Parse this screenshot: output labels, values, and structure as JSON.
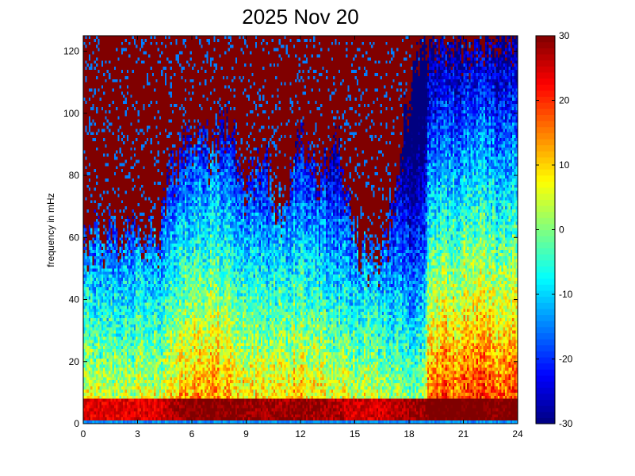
{
  "chart_data": {
    "type": "heatmap",
    "title": "2025 Nov 20",
    "xlabel": "",
    "ylabel": "frequency in mHz",
    "xlim": [
      0,
      24
    ],
    "ylim": [
      0,
      125
    ],
    "x_ticks": [
      0,
      3,
      6,
      9,
      12,
      15,
      18,
      21,
      24
    ],
    "y_ticks": [
      0,
      20,
      40,
      60,
      80,
      100,
      120
    ],
    "colorbar": {
      "range": [
        -30,
        30
      ],
      "ticks": [
        30,
        20,
        10,
        0,
        -10,
        -20,
        -30
      ],
      "colormap": "jet"
    },
    "grid": false,
    "x_step_hours": 0.1,
    "y_step_mhz": 1,
    "profile_hours": [
      0,
      4.3,
      4.6,
      6,
      7,
      8,
      9,
      10,
      11,
      12,
      13,
      14,
      15,
      16,
      16.8,
      18,
      18.8,
      19.1,
      21,
      22,
      22.7,
      24
    ],
    "profile_boundary_mhz": [
      62,
      64,
      80,
      95,
      90,
      100,
      80,
      88,
      70,
      95,
      80,
      95,
      60,
      55,
      60,
      110,
      125,
      125,
      125,
      125,
      125,
      125
    ],
    "profile_level_at_20mhz": [
      0,
      0,
      2,
      9,
      10,
      8,
      5,
      3,
      4,
      6,
      3,
      1,
      0,
      0,
      -2,
      -4,
      -4,
      12,
      14,
      16,
      12,
      16
    ],
    "profile_level_at_5mhz": [
      24,
      24,
      26,
      30,
      30,
      30,
      29,
      28,
      28,
      29,
      28,
      27,
      25,
      25,
      25,
      28,
      28,
      32,
      32,
      32,
      30,
      32
    ],
    "low_band_mhz": 8,
    "decay_mhz_per_10dB": 24,
    "noise_dB": 7,
    "saturated_value": 35
  },
  "colors": {
    "background": "#ffffff",
    "axis": "#000000"
  }
}
